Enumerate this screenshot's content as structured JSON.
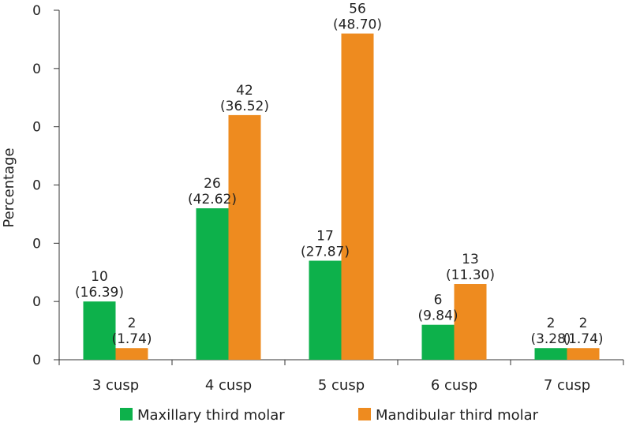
{
  "chart_data": {
    "type": "bar",
    "ylabel": "Percentage",
    "xlabel": "",
    "categories": [
      "3 cusp",
      "4 cusp",
      "5 cusp",
      "6 cusp",
      "7 cusp"
    ],
    "y_tick_labels": [
      "0",
      "0",
      "0",
      "0",
      "0",
      "0",
      "0"
    ],
    "ylim": [
      0,
      60
    ],
    "series": [
      {
        "name": "Maxillary third molar",
        "color": "#0db14b",
        "values": [
          10,
          26,
          17,
          6,
          2
        ],
        "labels": [
          [
            "10",
            "(16.39)"
          ],
          [
            "26",
            "(42.62)"
          ],
          [
            "17",
            "(27.87)"
          ],
          [
            "6",
            "(9.84)"
          ],
          [
            "2",
            "(3.28)"
          ]
        ]
      },
      {
        "name": "Mandibular third molar",
        "color": "#ee8b1f",
        "values": [
          2,
          42,
          56,
          13,
          2
        ],
        "labels": [
          [
            "2",
            "(1.74)"
          ],
          [
            "42",
            "(36.52)"
          ],
          [
            "56",
            "(48.70)"
          ],
          [
            "13",
            "(11.30)"
          ],
          [
            "2",
            "(1.74)"
          ]
        ]
      }
    ],
    "legend": "bottom",
    "grid": false
  }
}
